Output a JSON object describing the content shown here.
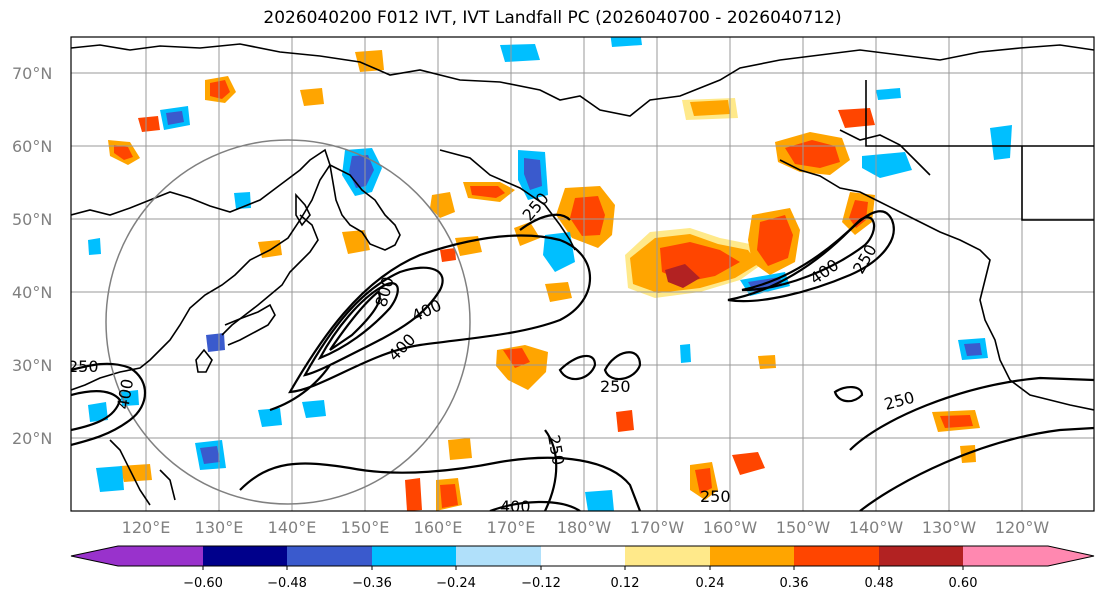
{
  "title": "2026040200 F012 IVT, IVT Landfall PC (2026040700 - 2026040712)",
  "map": {
    "lat_labels": [
      "70°N",
      "60°N",
      "50°N",
      "40°N",
      "30°N",
      "20°N"
    ],
    "lon_labels": [
      "120°E",
      "130°E",
      "140°E",
      "150°E",
      "160°E",
      "170°E",
      "180°W",
      "170°W",
      "160°W",
      "150°W",
      "140°W",
      "130°W",
      "120°W"
    ],
    "ivt_contour_labels": [
      "250",
      "250",
      "250",
      "250",
      "250",
      "250",
      "250",
      "400",
      "400",
      "400",
      "400",
      "400",
      "800"
    ],
    "colors": {
      "land_outline": "#000000",
      "grid": "#999999",
      "contour": "#000000",
      "circle": "#808080"
    }
  },
  "colorbar": {
    "ticks": [
      "−0.60",
      "−0.48",
      "−0.36",
      "−0.24",
      "−0.12",
      "0.12",
      "0.24",
      "0.36",
      "0.48",
      "0.60"
    ],
    "colors": [
      "#9932cc",
      "#00008b",
      "#3a5acd",
      "#00bfff",
      "#b0e0fa",
      "#ffffff",
      "#ffe98a",
      "#ffa500",
      "#ff4500",
      "#b22222",
      "#ff88b0"
    ]
  }
}
